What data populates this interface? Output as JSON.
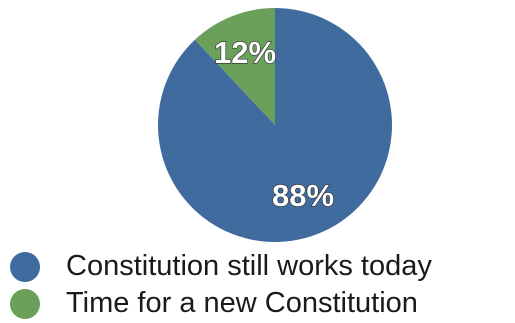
{
  "chart_data": {
    "type": "pie",
    "title": "",
    "legend_position": "bottom-left",
    "slices": [
      {
        "label": "Constitution still works today",
        "value": 88,
        "display": "88%",
        "color": "#3f6b9e"
      },
      {
        "label": "Time for a new Constitution",
        "value": 12,
        "display": "12%",
        "color": "#6ba05a"
      }
    ]
  }
}
